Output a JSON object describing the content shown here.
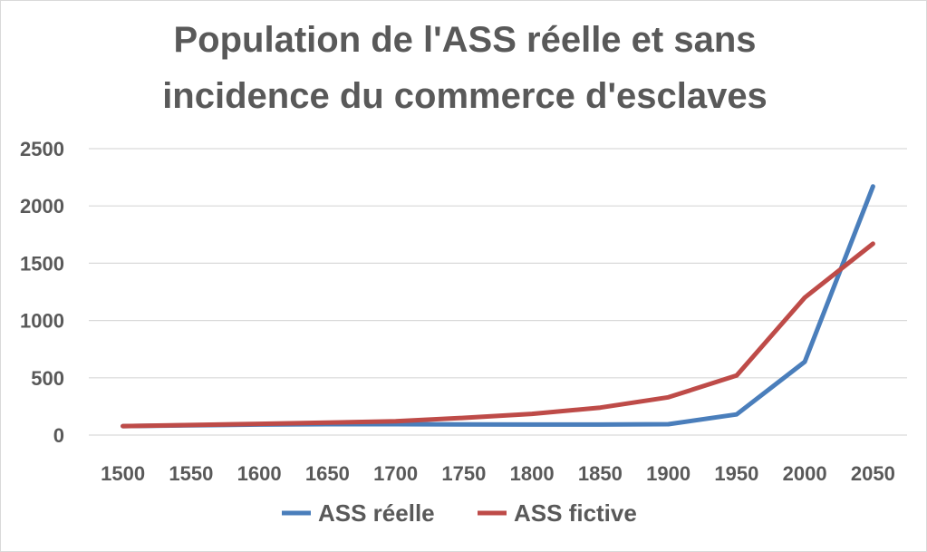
{
  "chart_data": {
    "type": "line",
    "title_lines": [
      "Population de l'ASS  réelle et sans",
      "incidence du commerce d'esclaves"
    ],
    "categories": [
      "1500",
      "1550",
      "1600",
      "1650",
      "1700",
      "1750",
      "1800",
      "1850",
      "1900",
      "1950",
      "2000",
      "2050"
    ],
    "series": [
      {
        "name": "ASS réelle",
        "color": "#4a7ebb",
        "values": [
          78,
          85,
          92,
          95,
          95,
          93,
          92,
          92,
          95,
          180,
          640,
          2170
        ]
      },
      {
        "name": "ASS fictive",
        "color": "#be4b48",
        "values": [
          78,
          88,
          98,
          108,
          120,
          150,
          185,
          240,
          330,
          520,
          1200,
          1670
        ]
      }
    ],
    "ylim": [
      0,
      2500
    ],
    "yticks": [
      "0",
      "500",
      "1000",
      "1500",
      "2000",
      "2500"
    ],
    "xlabel": "",
    "ylabel": "",
    "grid": true,
    "legend_position": "bottom",
    "gridline_color": "#d9d9d9"
  }
}
